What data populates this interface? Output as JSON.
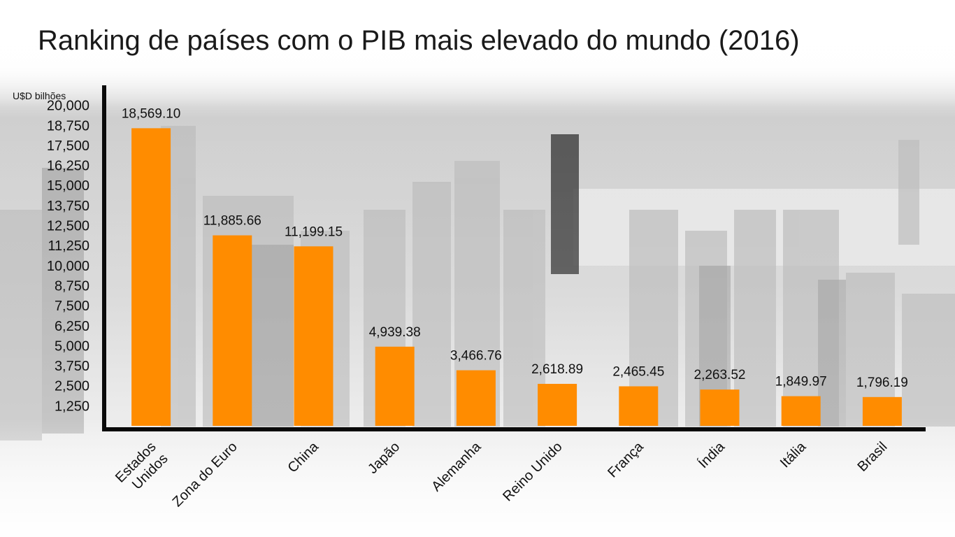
{
  "chart_data": {
    "type": "bar",
    "title": "Ranking de países com o PIB mais elevado do mundo (2016)",
    "ylabel": "U$D bilhões",
    "xlabel": "",
    "ylim": [
      0,
      20000
    ],
    "yticks": [
      1250,
      2500,
      3750,
      5000,
      6250,
      7500,
      8750,
      10000,
      11250,
      12500,
      13750,
      15000,
      16250,
      17500,
      18750,
      20000
    ],
    "ytick_labels": [
      "1,250",
      "2,500",
      "3,750",
      "5,000",
      "6,250",
      "7,500",
      "8,750",
      "10,000",
      "11,250",
      "12,500",
      "13,750",
      "15,000",
      "16,250",
      "17,500",
      "18,750",
      "20,000"
    ],
    "categories": [
      "Estados Unidos",
      "Zona do Euro",
      "China",
      "Japão",
      "Alemanha",
      "Reino Unido",
      "França",
      "Índia",
      "Itália",
      "Brasil"
    ],
    "category_lines": [
      [
        "Estados",
        "Unidos"
      ],
      [
        "Zona do Euro"
      ],
      [
        "China"
      ],
      [
        "Japão"
      ],
      [
        "Alemanha"
      ],
      [
        "Reino Unido"
      ],
      [
        "França"
      ],
      [
        "Índia"
      ],
      [
        "Itália"
      ],
      [
        "Brasil"
      ]
    ],
    "values": [
      18569.1,
      11885.66,
      11199.15,
      4939.38,
      3466.76,
      2618.89,
      2465.45,
      2263.52,
      1849.97,
      1796.19
    ],
    "value_labels": [
      "18,569.10",
      "11,885.66",
      "11,199.15",
      "4,939.38",
      "3,466.76",
      "2,618.89",
      "2,465.45",
      "2,263.52",
      "1,849.97",
      "1,796.19"
    ],
    "bar_color": "#ff8c00",
    "axis_color": "#0a0a0a",
    "grid": false,
    "legend": "none"
  }
}
